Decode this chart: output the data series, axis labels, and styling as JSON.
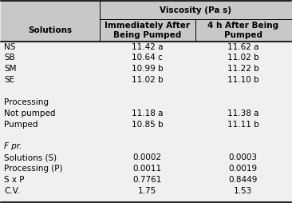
{
  "title": "Viscosity (Pa s)",
  "col_header1": "Immediately After\nBeing Pumped",
  "col_header2": "4 h After Being\nPumped",
  "row_label_col": "Solutions",
  "rows": [
    [
      "NS",
      "11.42 a",
      "11.62 a"
    ],
    [
      "SB",
      "10.64 c",
      "11.02 b"
    ],
    [
      "SM",
      "10.99 b",
      "11.22 b"
    ],
    [
      "SE",
      "11.02 b",
      "11.10 b"
    ],
    [
      "",
      "",
      ""
    ],
    [
      "Processing",
      "",
      ""
    ],
    [
      "Not pumped",
      "11.18 a",
      "11.38 a"
    ],
    [
      "Pumped",
      "10.85 b",
      "11.11 b"
    ],
    [
      "",
      "",
      ""
    ],
    [
      "F pr.",
      "",
      ""
    ],
    [
      "Solutions (S)",
      "0.0002",
      "0.0003"
    ],
    [
      "Processing (P)",
      "0.0011",
      "0.0019"
    ],
    [
      "S x P",
      "0.7761",
      "0.8449"
    ],
    [
      "C.V.",
      "1.75",
      "1.53"
    ]
  ],
  "italic_rows": [
    9
  ],
  "header_bg": "#c8c8c8",
  "bg_color": "#f0f0f0",
  "font_size": 7.5,
  "header_font_size": 7.5
}
